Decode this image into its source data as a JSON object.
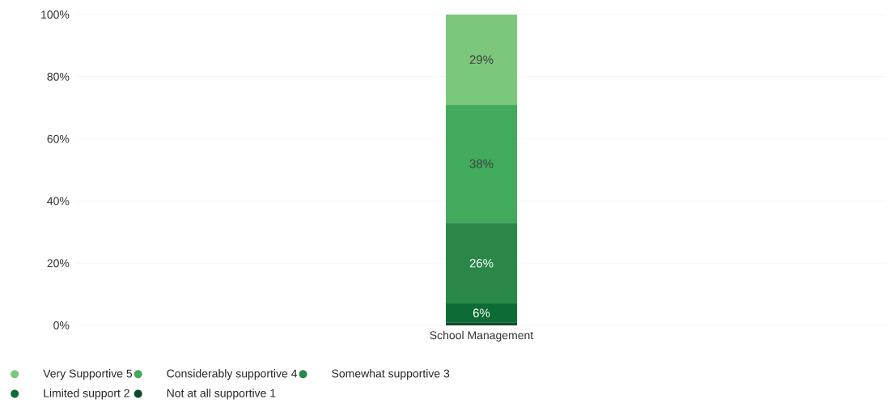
{
  "chart_data": {
    "type": "bar",
    "stacked": true,
    "categories": [
      "School Management"
    ],
    "series": [
      {
        "name": "Not at all supportive 1",
        "color": "#0b4d2c",
        "values": [
          1
        ],
        "value_labels": [
          null
        ]
      },
      {
        "name": "Limited support 2",
        "color": "#0d6b35",
        "values": [
          6
        ],
        "value_labels": [
          "6%"
        ]
      },
      {
        "name": "Somewhat supportive 3",
        "color": "#2a8748",
        "values": [
          26
        ],
        "value_labels": [
          "26%"
        ]
      },
      {
        "name": "Considerably supportive 4",
        "color": "#41aa5c",
        "values": [
          38
        ],
        "value_labels": [
          "38%"
        ]
      },
      {
        "name": "Very Supportive 5",
        "color": "#7bc87c",
        "values": [
          29
        ],
        "value_labels": [
          "29%"
        ]
      }
    ],
    "ylim": [
      0,
      100
    ],
    "yticks": [
      {
        "value": 0,
        "label": "0%"
      },
      {
        "value": 20,
        "label": "20%"
      },
      {
        "value": 40,
        "label": "40%"
      },
      {
        "value": 60,
        "label": "60%"
      },
      {
        "value": 80,
        "label": "80%"
      },
      {
        "value": 100,
        "label": "100%"
      }
    ],
    "grid": "y",
    "legend": "bottom"
  }
}
